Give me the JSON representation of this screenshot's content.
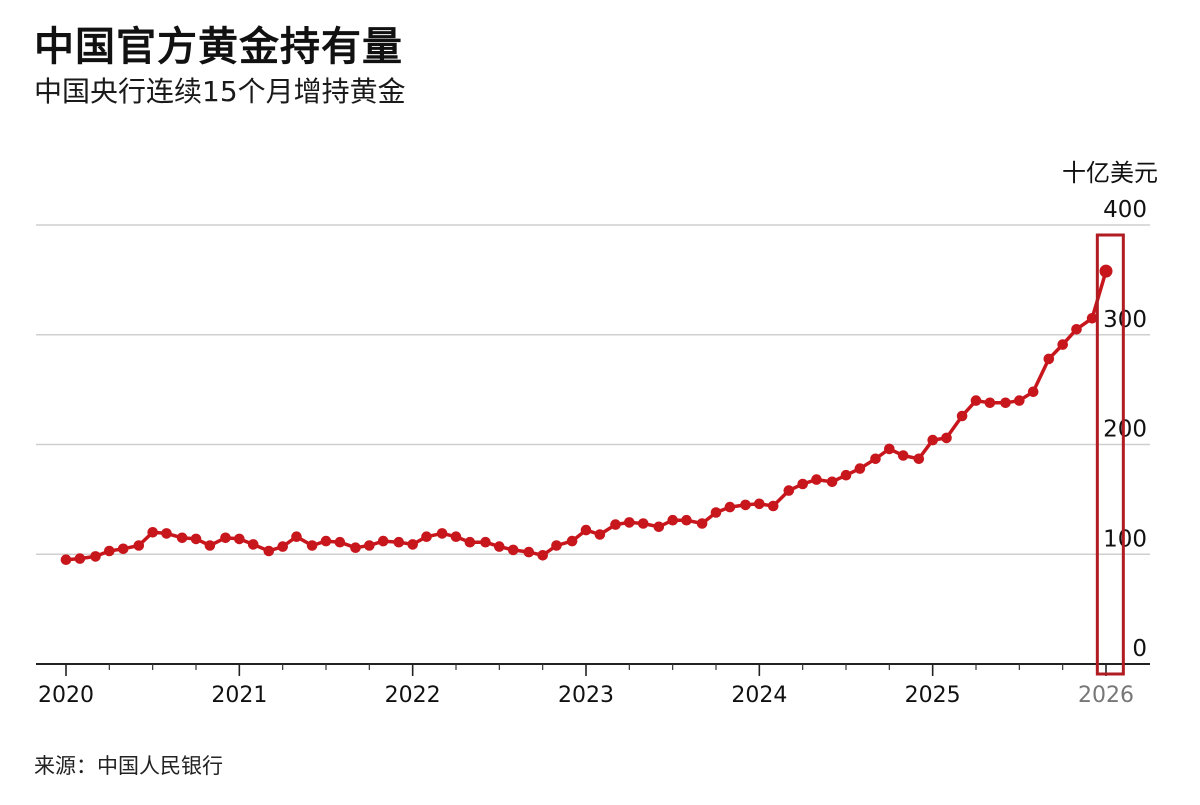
{
  "title": "中国官方黄金持有量",
  "subtitle": "中国央行连续15个月增持黄金",
  "source": "来源：中国人民银行",
  "chart_data": {
    "type": "line",
    "unit_label": "十亿美元",
    "ylim": [
      0,
      400
    ],
    "y_ticks": [
      0,
      100,
      200,
      300,
      400
    ],
    "y_tick_labels": [
      "0",
      "100",
      "200",
      "300",
      "400"
    ],
    "xlim": [
      2020,
      2026
    ],
    "x_ticks": [
      2020,
      2021,
      2022,
      2023,
      2024,
      2025,
      2026
    ],
    "x_tick_labels": [
      "2020",
      "2021",
      "2022",
      "2023",
      "2024",
      "2025",
      "2026"
    ],
    "grid": true,
    "line_color": "#c8161d",
    "highlight_color": "#b01c22",
    "highlight_range": [
      2025.95,
      2026.1
    ],
    "series": [
      {
        "points": [
          [
            2020.0,
            95
          ],
          [
            2020.08,
            96
          ],
          [
            2020.17,
            98
          ],
          [
            2020.25,
            103
          ],
          [
            2020.33,
            105
          ],
          [
            2020.42,
            108
          ],
          [
            2020.5,
            120
          ],
          [
            2020.58,
            119
          ],
          [
            2020.67,
            115
          ],
          [
            2020.75,
            114
          ],
          [
            2020.83,
            108
          ],
          [
            2020.92,
            115
          ],
          [
            2021.0,
            114
          ],
          [
            2021.08,
            109
          ],
          [
            2021.17,
            103
          ],
          [
            2021.25,
            107
          ],
          [
            2021.33,
            116
          ],
          [
            2021.42,
            108
          ],
          [
            2021.5,
            112
          ],
          [
            2021.58,
            111
          ],
          [
            2021.67,
            106
          ],
          [
            2021.75,
            108
          ],
          [
            2021.83,
            112
          ],
          [
            2021.92,
            111
          ],
          [
            2022.0,
            109
          ],
          [
            2022.08,
            116
          ],
          [
            2022.17,
            119
          ],
          [
            2022.25,
            116
          ],
          [
            2022.33,
            111
          ],
          [
            2022.42,
            111
          ],
          [
            2022.5,
            107
          ],
          [
            2022.58,
            104
          ],
          [
            2022.67,
            102
          ],
          [
            2022.75,
            99
          ],
          [
            2022.83,
            108
          ],
          [
            2022.92,
            112
          ],
          [
            2023.0,
            122
          ],
          [
            2023.08,
            118
          ],
          [
            2023.17,
            127
          ],
          [
            2023.25,
            129
          ],
          [
            2023.33,
            128
          ],
          [
            2023.42,
            125
          ],
          [
            2023.5,
            131
          ],
          [
            2023.58,
            131
          ],
          [
            2023.67,
            128
          ],
          [
            2023.75,
            138
          ],
          [
            2023.83,
            143
          ],
          [
            2023.92,
            145
          ],
          [
            2024.0,
            146
          ],
          [
            2024.08,
            144
          ],
          [
            2024.17,
            158
          ],
          [
            2024.25,
            164
          ],
          [
            2024.33,
            168
          ],
          [
            2024.42,
            166
          ],
          [
            2024.5,
            172
          ],
          [
            2024.58,
            178
          ],
          [
            2024.67,
            187
          ],
          [
            2024.75,
            196
          ],
          [
            2024.83,
            190
          ],
          [
            2024.92,
            187
          ],
          [
            2025.0,
            204
          ],
          [
            2025.08,
            206
          ],
          [
            2025.17,
            226
          ],
          [
            2025.25,
            240
          ],
          [
            2025.33,
            238
          ],
          [
            2025.42,
            238
          ],
          [
            2025.5,
            240
          ],
          [
            2025.58,
            248
          ],
          [
            2025.67,
            278
          ],
          [
            2025.75,
            291
          ],
          [
            2025.83,
            305
          ],
          [
            2025.92,
            315
          ],
          [
            2026.0,
            358
          ]
        ]
      }
    ]
  }
}
